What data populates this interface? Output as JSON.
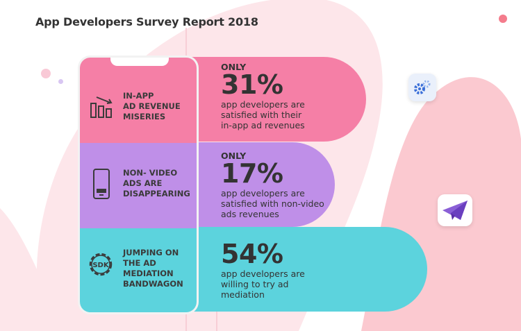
{
  "title": "App Developers Survey Report 2018",
  "colors": {
    "pink": "#f57fa6",
    "purple": "#bf8fe8",
    "cyan": "#5cd3dd",
    "blob": "#fde3e6",
    "text": "#333333"
  },
  "sections": [
    {
      "icon": "bar-chart-down-icon",
      "label_lines": [
        "IN-APP",
        "AD REVENUE",
        "MISERIES"
      ],
      "prefix": "ONLY",
      "percent": "31%",
      "desc_lines": [
        "app developers are",
        "satisfied with their",
        "in-app ad revenues"
      ]
    },
    {
      "icon": "smartphone-icon",
      "label_lines": [
        "NON- VIDEO",
        "ADS ARE",
        "DISAPPEARING"
      ],
      "prefix": "ONLY",
      "percent": "17%",
      "desc_lines": [
        "app developers are",
        "satisfied with non-video",
        "ads revenues"
      ]
    },
    {
      "icon": "sdk-gear-icon",
      "icon_text": "SDK",
      "label_lines": [
        "JUMPING ON",
        "THE AD",
        "MEDIATION",
        "BANDWAGON"
      ],
      "prefix": "",
      "percent": "54%",
      "desc_lines": [
        "app developers are",
        "willing to try ad",
        "mediation"
      ]
    }
  ]
}
